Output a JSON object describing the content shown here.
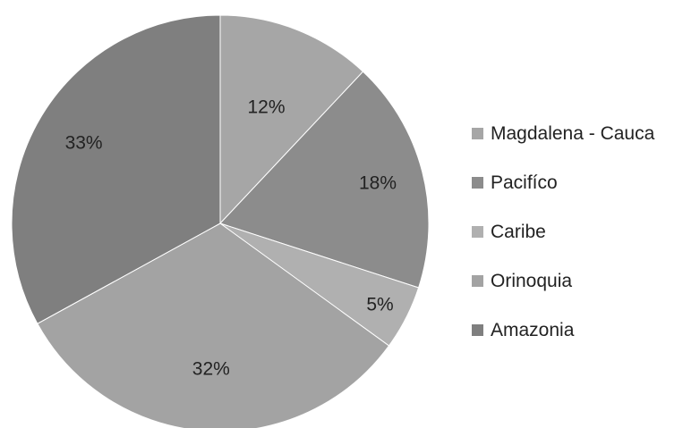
{
  "chart_data": {
    "type": "pie",
    "categories": [
      "Magdalena - Cauca",
      "Pacifíco",
      "Caribe",
      "Orinoquia",
      "Amazonia"
    ],
    "values": [
      12,
      18,
      5,
      32,
      33
    ],
    "value_labels": [
      "12%",
      "18%",
      "5%",
      "32%",
      "33%"
    ],
    "colors": [
      "#a6a6a6",
      "#8c8c8c",
      "#b0b0b0",
      "#a3a3a3",
      "#7f7f7f"
    ],
    "legend_position": "right",
    "start_angle": "12 o'clock",
    "direction": "clockwise"
  }
}
